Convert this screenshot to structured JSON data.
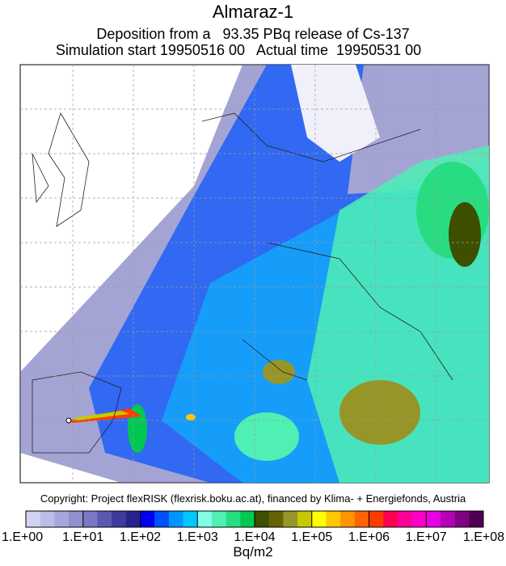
{
  "header": {
    "title": "Almaraz-1",
    "subtitle": "Deposition from a   93.35 PBq release of Cs-137",
    "timing": "Simulation start 19950516 00   Actual time  19950531 00"
  },
  "copyright": "Copyright: Project flexRISK (flexrisk.boku.ac.at), financed by Klima- + Energiefonds, Austria",
  "colorbar": {
    "ticks": [
      "1.E+00",
      "1.E+01",
      "1.E+02",
      "1.E+03",
      "1.E+04",
      "1.E+05",
      "1.E+06",
      "1.E+07",
      "1.E+08"
    ],
    "unit": "Bq/m2",
    "colors": [
      "#d2d2f2",
      "#bcbce8",
      "#a6a6dc",
      "#9090d0",
      "#7878c4",
      "#5a5ab0",
      "#3c3c9c",
      "#24248c",
      "#0000f0",
      "#0050ff",
      "#0096ff",
      "#00c8ff",
      "#80ffe6",
      "#50f0b4",
      "#28dc82",
      "#00c850",
      "#3c5000",
      "#646400",
      "#969628",
      "#c8c800",
      "#ffff00",
      "#ffc800",
      "#ff9600",
      "#ff6400",
      "#ff3c00",
      "#ff0050",
      "#ff0096",
      "#ff00c8",
      "#e600e6",
      "#b400b4",
      "#820082",
      "#500050"
    ]
  }
}
